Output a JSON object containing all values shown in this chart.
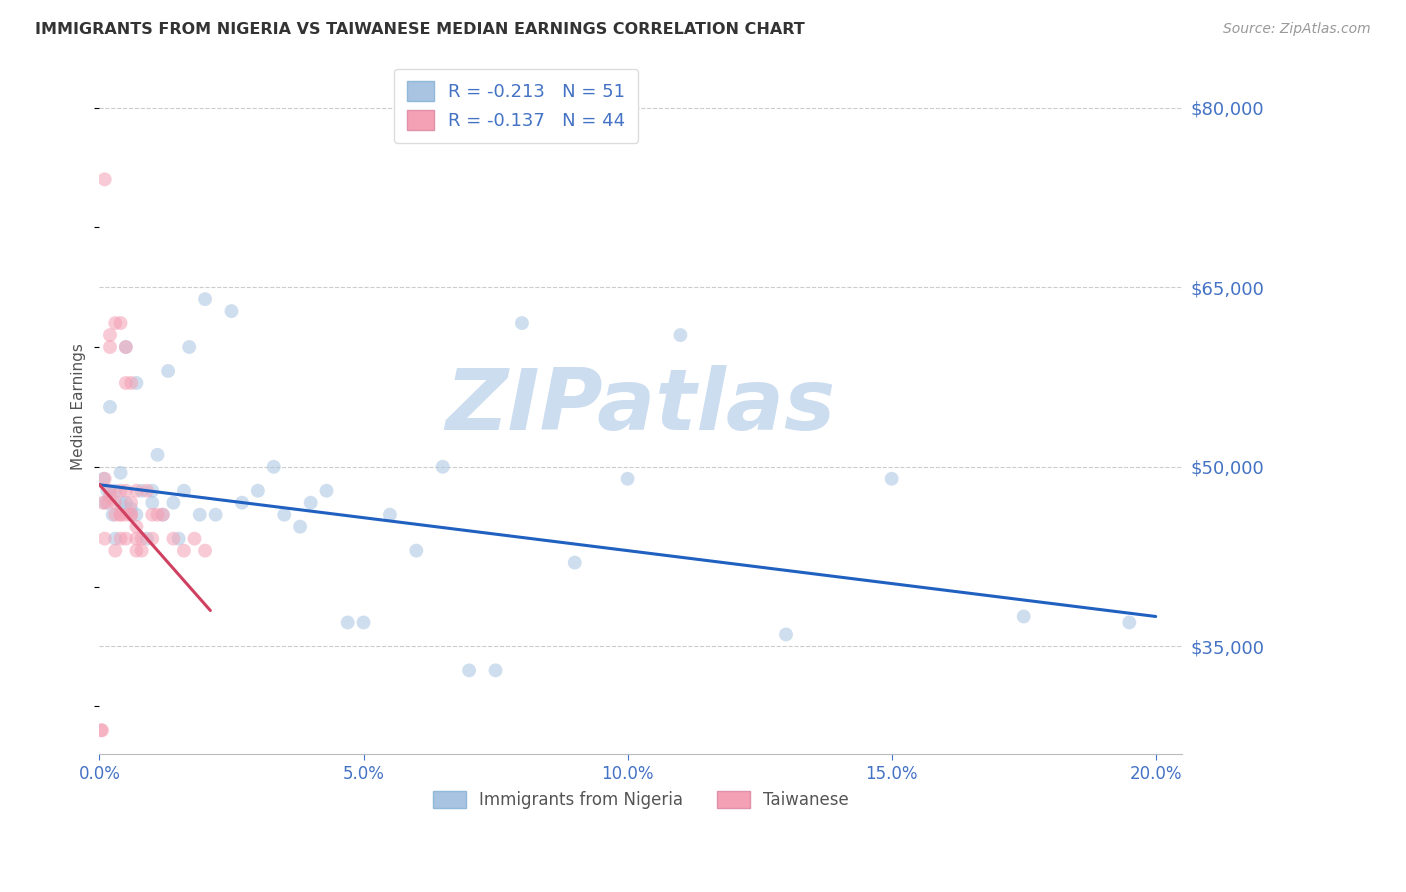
{
  "title": "IMMIGRANTS FROM NIGERIA VS TAIWANESE MEDIAN EARNINGS CORRELATION CHART",
  "source": "Source: ZipAtlas.com",
  "ylabel": "Median Earnings",
  "ytick_values": [
    35000,
    50000,
    65000,
    80000
  ],
  "xlim": [
    0.0,
    0.205
  ],
  "ylim": [
    26000,
    84000
  ],
  "watermark": "ZIPatlas",
  "watermark_color": "#ccddf0",
  "background_color": "#ffffff",
  "grid_color": "#cccccc",
  "scatter_size": 100,
  "scatter_alpha": 0.55,
  "nigeria_color": "#a8c4e0",
  "taiwan_color": "#f4a0b5",
  "nigeria_R": "-0.213",
  "nigeria_N": "51",
  "taiwan_R": "-0.137",
  "taiwan_N": "44",
  "nigeria_label": "Immigrants from Nigeria",
  "taiwan_label": "Taiwanese",
  "nigeria_scatter_x": [
    0.0008,
    0.001,
    0.0015,
    0.002,
    0.0025,
    0.003,
    0.003,
    0.004,
    0.004,
    0.005,
    0.005,
    0.006,
    0.007,
    0.007,
    0.008,
    0.009,
    0.01,
    0.01,
    0.011,
    0.012,
    0.013,
    0.014,
    0.015,
    0.016,
    0.017,
    0.019,
    0.02,
    0.022,
    0.025,
    0.027,
    0.03,
    0.033,
    0.035,
    0.038,
    0.04,
    0.043,
    0.047,
    0.05,
    0.055,
    0.06,
    0.065,
    0.07,
    0.075,
    0.08,
    0.09,
    0.1,
    0.11,
    0.13,
    0.15,
    0.175,
    0.195
  ],
  "nigeria_scatter_y": [
    49000,
    47000,
    48000,
    55000,
    46000,
    48000,
    44000,
    49500,
    47000,
    47000,
    60000,
    46500,
    57000,
    46000,
    48000,
    44000,
    47000,
    48000,
    51000,
    46000,
    58000,
    47000,
    44000,
    48000,
    60000,
    46000,
    64000,
    46000,
    63000,
    47000,
    48000,
    50000,
    46000,
    45000,
    47000,
    48000,
    37000,
    37000,
    46000,
    43000,
    50000,
    33000,
    33000,
    62000,
    42000,
    49000,
    61000,
    36000,
    49000,
    37500,
    37000
  ],
  "taiwanese_scatter_x": [
    0.0003,
    0.0005,
    0.0007,
    0.001,
    0.001,
    0.001,
    0.0015,
    0.002,
    0.002,
    0.002,
    0.002,
    0.003,
    0.003,
    0.003,
    0.003,
    0.004,
    0.004,
    0.004,
    0.004,
    0.004,
    0.005,
    0.005,
    0.005,
    0.005,
    0.005,
    0.006,
    0.006,
    0.006,
    0.006,
    0.007,
    0.007,
    0.007,
    0.007,
    0.008,
    0.008,
    0.009,
    0.01,
    0.01,
    0.011,
    0.012,
    0.014,
    0.016,
    0.018,
    0.02
  ],
  "taiwanese_scatter_y": [
    28000,
    28000,
    47000,
    44000,
    49000,
    74000,
    47000,
    47500,
    48000,
    61000,
    60000,
    47000,
    46000,
    43000,
    62000,
    48000,
    46000,
    44000,
    46000,
    62000,
    48000,
    60000,
    57000,
    46000,
    44000,
    46000,
    47000,
    57000,
    46000,
    48000,
    45000,
    44000,
    43000,
    44000,
    43000,
    48000,
    44000,
    46000,
    46000,
    46000,
    44000,
    43000,
    44000,
    43000
  ],
  "nigeria_trend_x": [
    0.0,
    0.2
  ],
  "nigeria_trend_y": [
    48500,
    37500
  ],
  "nigeria_trend_color": "#2060c0",
  "nigeria_trend_lw": 2.2,
  "taiwanese_trend_x": [
    0.0,
    0.021
  ],
  "taiwanese_trend_y": [
    48500,
    38000
  ],
  "taiwanese_trend_color": "#d04060",
  "taiwanese_trend_lw": 2.2
}
